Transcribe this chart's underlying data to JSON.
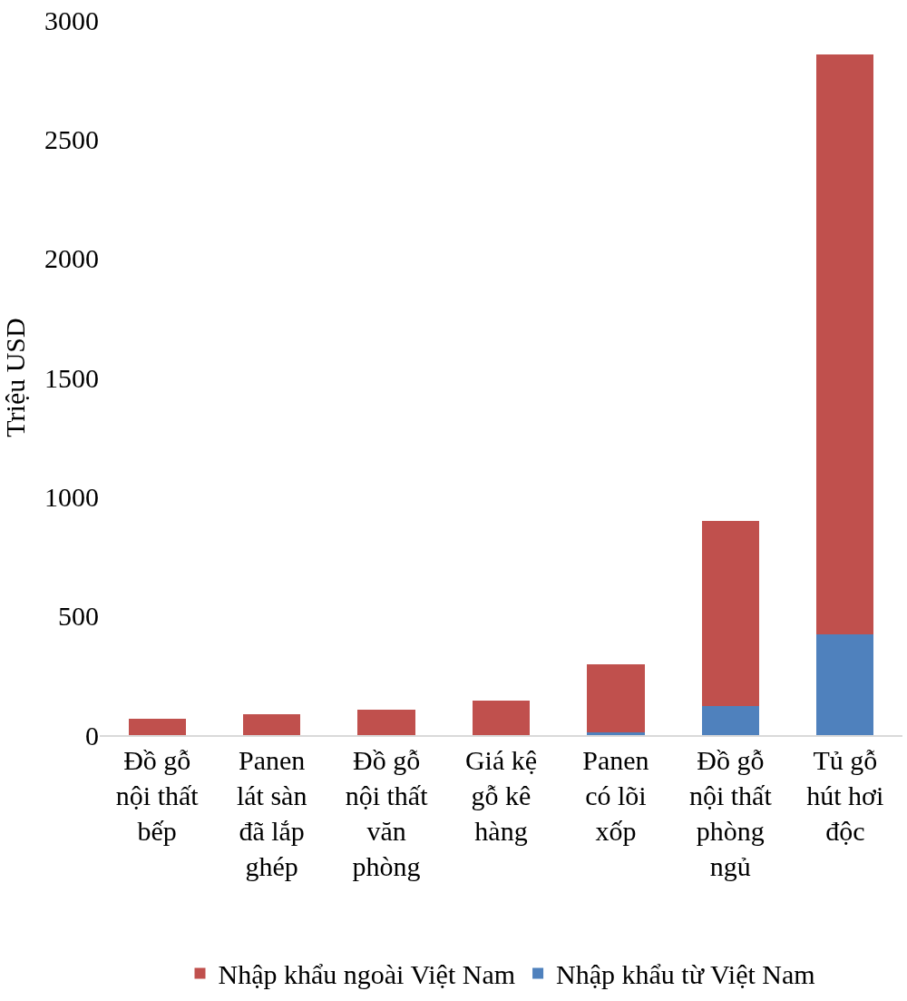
{
  "chart_data": {
    "type": "bar",
    "stacked": true,
    "ylabel": "Triệu USD",
    "categories": [
      "Đồ gỗ\nnội thất\nbếp",
      "Panen\nlát sàn\nđã lắp\nghép",
      "Đồ gỗ\nnội thất\nvăn\nphòng",
      "Giá kệ\ngỗ kê\nhàng",
      "Panen\ncó lõi\nxốp",
      "Đồ gỗ\nnội thất\nphòng\nngủ",
      "Tủ gỗ\nhút hơi\nđộc"
    ],
    "series": [
      {
        "name": "Nhập khẩu từ Việt Nam",
        "color": "#4f81bd",
        "values": [
          0,
          0,
          0,
          0,
          11,
          122,
          424
        ]
      },
      {
        "name": "Nhập khẩu ngoài Việt Nam",
        "color": "#c0504d",
        "values": [
          69,
          89,
          105,
          143,
          285,
          776,
          2430
        ]
      }
    ],
    "ylim": [
      0,
      3000
    ],
    "yticks": [
      0,
      500,
      1000,
      1500,
      2000,
      2500,
      3000
    ],
    "grid": false,
    "legend": "bottom"
  }
}
